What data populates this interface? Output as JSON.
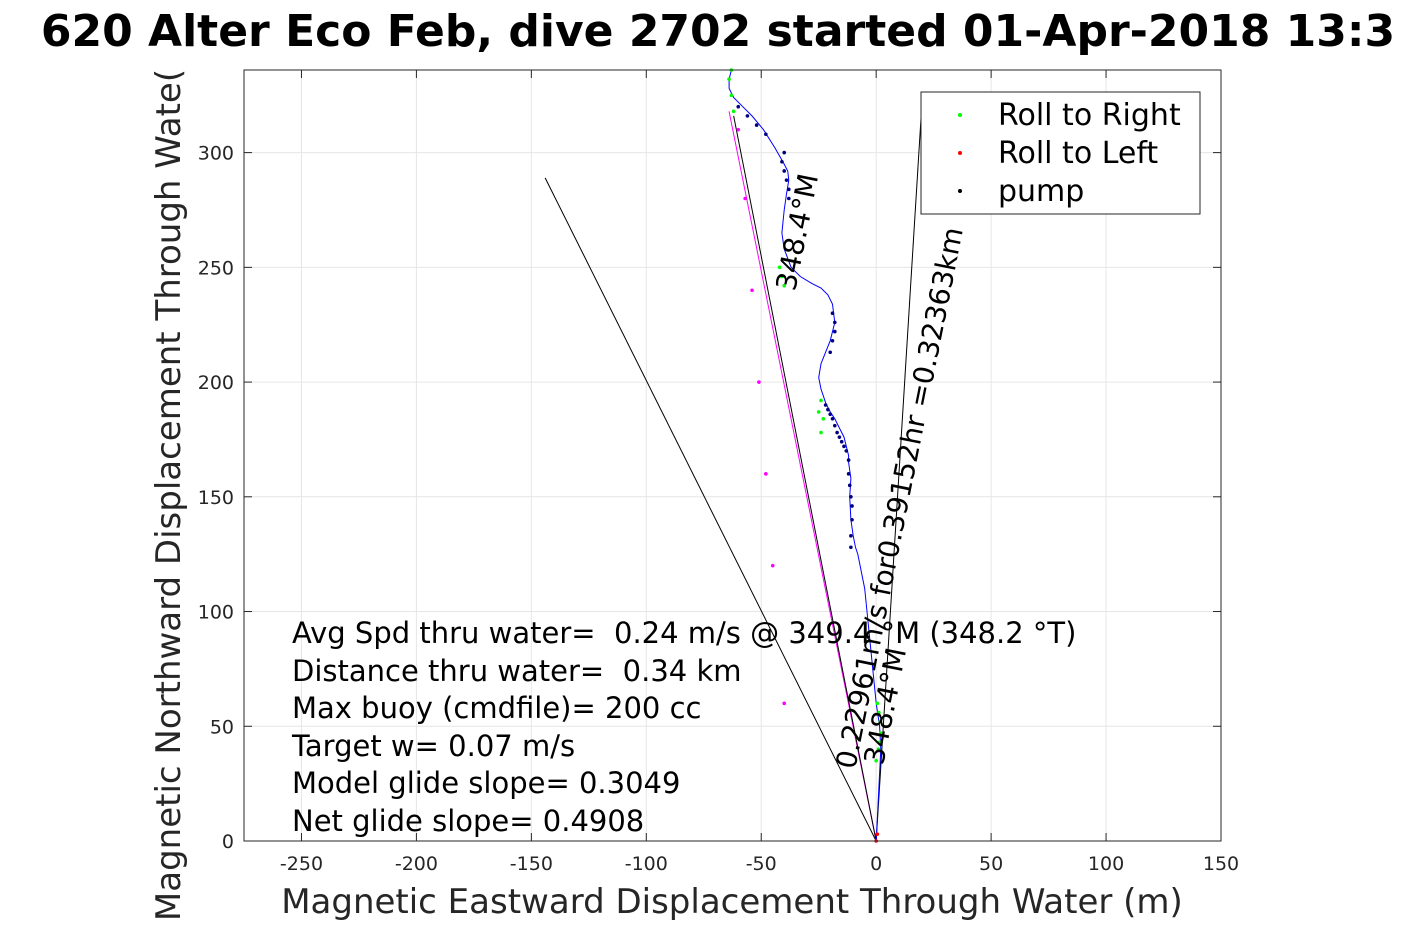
{
  "chart_data": {
    "type": "line",
    "title": "620 Alter Eco Feb, dive 2702 started 01-Apr-2018 13:3",
    "xlabel": "Magnetic Eastward Displacement Through Water (m)",
    "ylabel": "Magnetic Northward Displacement Through Wate(",
    "xlim": [
      -275,
      150
    ],
    "ylim": [
      0,
      336
    ],
    "xticks": [
      -250,
      -200,
      -150,
      -100,
      -50,
      0,
      50,
      100,
      150
    ],
    "yticks": [
      0,
      50,
      100,
      150,
      200,
      250,
      300
    ],
    "grid": true,
    "legend_position": "top-right",
    "legend": [
      {
        "label": "Roll to Right",
        "color": "#00ff00"
      },
      {
        "label": "Roll to Left",
        "color": "#ff0000"
      },
      {
        "label": "pump",
        "color": "#000000"
      }
    ],
    "series": [
      {
        "color": "#0000ff",
        "style": "track",
        "x": [
          0,
          1,
          2,
          1.5,
          0,
          -1,
          -2,
          -3,
          -4,
          -5,
          -6,
          -7,
          -8,
          -9,
          -10,
          -11,
          -11.5,
          -11,
          -12,
          -12,
          -13,
          -14,
          -16,
          -18,
          -20,
          -22,
          -24,
          -25,
          -24,
          -22,
          -20,
          -19,
          -18,
          -18.5,
          -19,
          -21,
          -24,
          -28,
          -33,
          -37,
          -40,
          -41,
          -40,
          -39,
          -38,
          -38.5,
          -40,
          -44,
          -49,
          -54,
          -58,
          -62,
          -64,
          -64,
          -63
        ],
        "y": [
          0,
          20,
          40,
          50,
          60,
          70,
          80,
          90,
          100,
          110,
          115,
          120,
          125,
          128,
          133,
          140,
          150,
          158,
          165,
          168,
          172,
          176,
          180,
          184,
          187,
          191,
          197,
          202,
          208,
          213,
          218,
          222,
          226,
          230,
          234,
          238,
          241,
          243,
          246,
          250,
          258,
          265,
          275,
          282,
          288,
          292,
          295,
          302,
          310,
          316,
          320,
          324,
          328,
          332,
          336
        ]
      },
      {
        "color": "#00ff00",
        "style": "dots",
        "x": [
          0,
          1,
          1.5,
          2,
          1.8,
          1.2,
          0.5,
          -24,
          -25,
          -24,
          -23,
          -40,
          -41,
          -42,
          -62,
          -63,
          -64,
          -63
        ],
        "y": [
          35,
          40,
          43,
          47,
          52,
          56,
          60,
          178,
          187,
          192,
          184,
          242,
          246,
          250,
          318,
          325,
          332,
          336
        ]
      },
      {
        "color": "#ff0000",
        "style": "dots",
        "x": [
          0,
          0.5
        ],
        "y": [
          0,
          3
        ]
      },
      {
        "color": "#000080",
        "style": "dots",
        "x": [
          -11,
          -11,
          -10.5,
          -10.5,
          -11,
          -11.5,
          -12,
          -12,
          -13,
          -14,
          -15,
          -16,
          -17,
          -18,
          -19,
          -20,
          -21,
          -22,
          -20,
          -19,
          -18,
          -18,
          -19,
          -38,
          -38,
          -39,
          -40,
          -41,
          -40,
          -48,
          -52,
          -56,
          -60
        ],
        "y": [
          128,
          133,
          140,
          146,
          150,
          155,
          160,
          166,
          170,
          172,
          174,
          176,
          178,
          181,
          184,
          186,
          188,
          190,
          213,
          218,
          222,
          226,
          230,
          280,
          284,
          288,
          292,
          296,
          300,
          308,
          312,
          316,
          320
        ]
      },
      {
        "color": "#ff00ff",
        "style": "dots",
        "x": [
          -40,
          -45,
          -48,
          -51,
          -54,
          -57,
          -60
        ],
        "y": [
          60,
          120,
          160,
          200,
          240,
          280,
          310
        ]
      }
    ],
    "lines": [
      {
        "color": "#000000",
        "x": [
          0,
          -144
        ],
        "y": [
          0,
          289
        ]
      },
      {
        "color": "#000000",
        "x": [
          0,
          20
        ],
        "y": [
          0,
          323
        ]
      },
      {
        "color": "#ff00ff",
        "x": [
          0,
          -64
        ],
        "y": [
          0,
          318
        ]
      },
      {
        "color": "#000000",
        "x": [
          0,
          -62
        ],
        "y": [
          0,
          316
        ]
      }
    ],
    "annotations": [
      "Avg Spd thru water=  0.24 m/s @ 349.4 °M (348.2 °T)",
      "Distance thru water=  0.34 km",
      "Max buoy (cmdfile)= 200 cc",
      "Target w= 0.07 m/s",
      "Model glide slope= 0.3049",
      "Net glide slope= 0.4908"
    ],
    "rotated_labels": [
      "0.22961m/s for0.39152hr =0.32363km",
      "348.4°M",
      "348.4°M"
    ]
  }
}
